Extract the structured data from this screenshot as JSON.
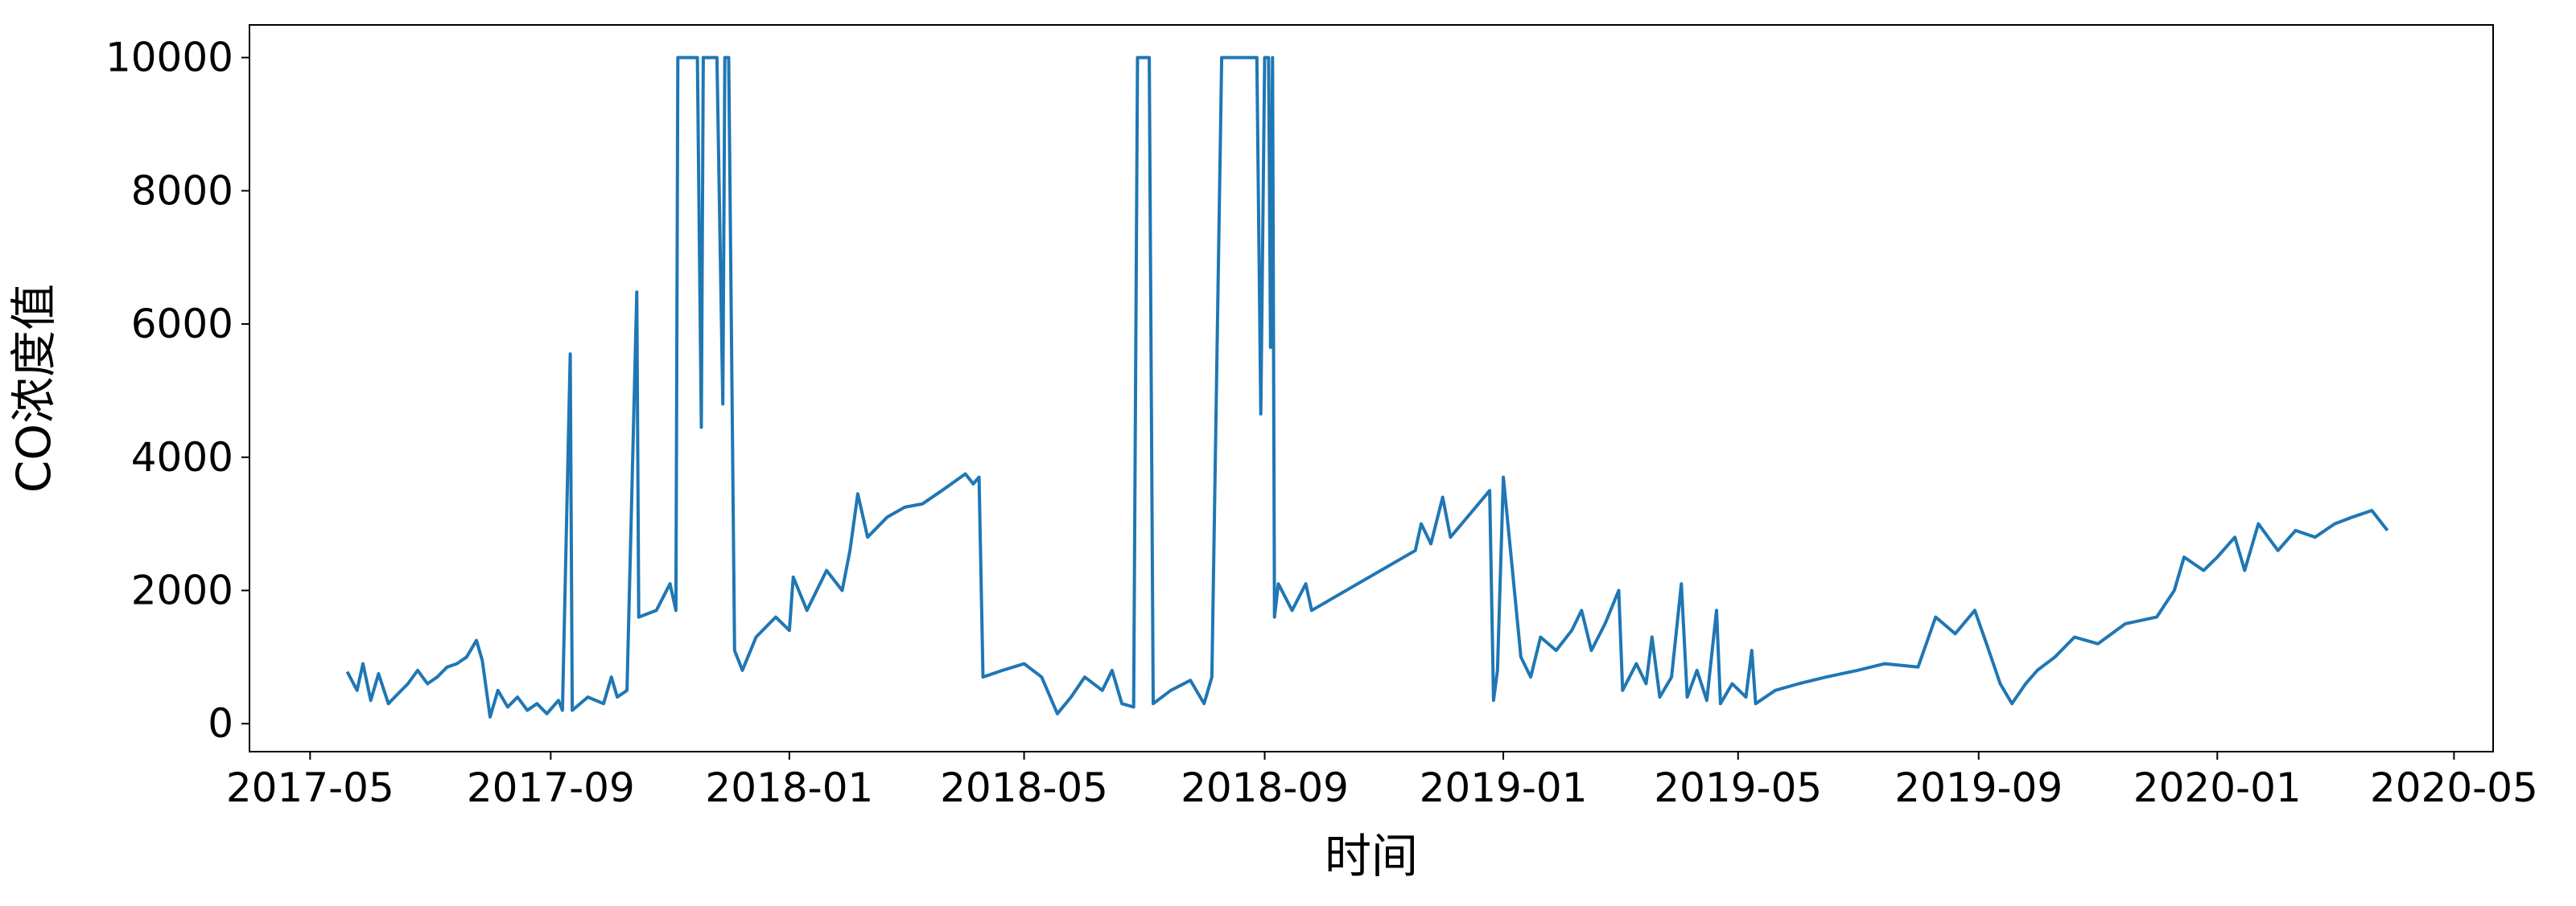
{
  "chart_data": {
    "type": "line",
    "x_label": "时间",
    "y_label": "CO浓度值",
    "color": "#1f77b4",
    "x": [
      "2017-05-20",
      "2017-05-25",
      "2017-05-28",
      "2017-06-01",
      "2017-06-05",
      "2017-06-10",
      "2017-06-15",
      "2017-06-20",
      "2017-06-25",
      "2017-06-30",
      "2017-07-05",
      "2017-07-10",
      "2017-07-15",
      "2017-07-20",
      "2017-07-25",
      "2017-07-28",
      "2017-08-01",
      "2017-08-05",
      "2017-08-10",
      "2017-08-15",
      "2017-08-20",
      "2017-08-25",
      "2017-08-30",
      "2017-09-05",
      "2017-09-07",
      "2017-09-11",
      "2017-09-12",
      "2017-09-20",
      "2017-09-28",
      "2017-10-02",
      "2017-10-05",
      "2017-10-10",
      "2017-10-15",
      "2017-10-16",
      "2017-10-25",
      "2017-11-01",
      "2017-11-04",
      "2017-11-05",
      "2017-11-15",
      "2017-11-17",
      "2017-11-18",
      "2017-11-25",
      "2017-11-28",
      "2017-11-29",
      "2017-12-01",
      "2017-12-04",
      "2017-12-08",
      "2017-12-15",
      "2017-12-25",
      "2018-01-01",
      "2018-01-03",
      "2018-01-10",
      "2018-01-20",
      "2018-01-28",
      "2018-02-01",
      "2018-02-05",
      "2018-02-10",
      "2018-02-20",
      "2018-03-01",
      "2018-03-10",
      "2018-03-20",
      "2018-04-01",
      "2018-04-05",
      "2018-04-08",
      "2018-04-10",
      "2018-04-20",
      "2018-05-01",
      "2018-05-10",
      "2018-05-18",
      "2018-05-25",
      "2018-06-01",
      "2018-06-10",
      "2018-06-15",
      "2018-06-20",
      "2018-06-26",
      "2018-06-28",
      "2018-07-04",
      "2018-07-06",
      "2018-07-15",
      "2018-07-25",
      "2018-08-01",
      "2018-08-05",
      "2018-08-10",
      "2018-08-28",
      "2018-08-30",
      "2018-09-01",
      "2018-09-03",
      "2018-09-04",
      "2018-09-05",
      "2018-09-06",
      "2018-09-08",
      "2018-09-15",
      "2018-09-22",
      "2018-09-25",
      "2018-11-17",
      "2018-11-20",
      "2018-11-25",
      "2018-12-01",
      "2018-12-05",
      "2018-12-25",
      "2018-12-27",
      "2018-12-29",
      "2019-01-01",
      "2019-01-05",
      "2019-01-10",
      "2019-01-15",
      "2019-01-20",
      "2019-01-28",
      "2019-02-05",
      "2019-02-10",
      "2019-02-15",
      "2019-02-22",
      "2019-03-01",
      "2019-03-03",
      "2019-03-10",
      "2019-03-15",
      "2019-03-18",
      "2019-03-22",
      "2019-03-28",
      "2019-04-02",
      "2019-04-05",
      "2019-04-10",
      "2019-04-15",
      "2019-04-20",
      "2019-04-22",
      "2019-04-28",
      "2019-05-05",
      "2019-05-08",
      "2019-05-10",
      "2019-05-20",
      "2019-06-01",
      "2019-06-15",
      "2019-07-01",
      "2019-07-15",
      "2019-08-01",
      "2019-08-10",
      "2019-08-20",
      "2019-08-30",
      "2019-09-05",
      "2019-09-12",
      "2019-09-18",
      "2019-09-25",
      "2019-10-01",
      "2019-10-10",
      "2019-10-20",
      "2019-11-01",
      "2019-11-15",
      "2019-12-01",
      "2019-12-10",
      "2019-12-15",
      "2019-12-25",
      "2020-01-01",
      "2020-01-10",
      "2020-01-15",
      "2020-01-22",
      "2020-02-01",
      "2020-02-10",
      "2020-02-20",
      "2020-03-01",
      "2020-03-10",
      "2020-03-20",
      "2020-03-28"
    ],
    "values": [
      780,
      500,
      900,
      350,
      750,
      300,
      450,
      600,
      800,
      600,
      700,
      850,
      900,
      1000,
      1250,
      950,
      100,
      500,
      250,
      400,
      200,
      300,
      150,
      350,
      200,
      5550,
      200,
      400,
      300,
      700,
      400,
      500,
      6480,
      1600,
      1700,
      2100,
      1700,
      10000,
      10000,
      4450,
      10000,
      10000,
      4800,
      10000,
      10000,
      1100,
      800,
      1300,
      1600,
      1400,
      2200,
      1700,
      2300,
      2000,
      2600,
      3450,
      2800,
      3100,
      3250,
      3300,
      3500,
      3750,
      3600,
      3700,
      700,
      800,
      900,
      700,
      150,
      400,
      700,
      500,
      800,
      300,
      250,
      10000,
      10000,
      300,
      500,
      650,
      300,
      700,
      10000,
      10000,
      4650,
      10000,
      10000,
      5650,
      10000,
      1600,
      2100,
      1700,
      2100,
      1700,
      2600,
      3000,
      2700,
      3400,
      2800,
      3500,
      350,
      800,
      3700,
      2500,
      1000,
      700,
      1300,
      1100,
      1400,
      1700,
      1100,
      1500,
      2000,
      500,
      900,
      600,
      1300,
      400,
      700,
      2100,
      400,
      800,
      350,
      1700,
      300,
      600,
      400,
      1100,
      300,
      500,
      600,
      700,
      800,
      900,
      850,
      1600,
      1350,
      1700,
      1200,
      600,
      300,
      600,
      800,
      1000,
      1300,
      1200,
      1500,
      1600,
      2000,
      2500,
      2300,
      2500,
      2800,
      2300,
      3000,
      2600,
      2900,
      2800,
      3000,
      3100,
      3200,
      2900
    ],
    "xlim": [
      "2017-03-31",
      "2020-05-21"
    ],
    "xticks": [
      "2017-05",
      "2017-09",
      "2018-01",
      "2018-05",
      "2018-09",
      "2019-01",
      "2019-05",
      "2019-09",
      "2020-01",
      "2020-05"
    ],
    "ylim": [
      -420,
      10490
    ],
    "yticks": [
      0,
      2000,
      4000,
      6000,
      8000,
      10000
    ]
  }
}
